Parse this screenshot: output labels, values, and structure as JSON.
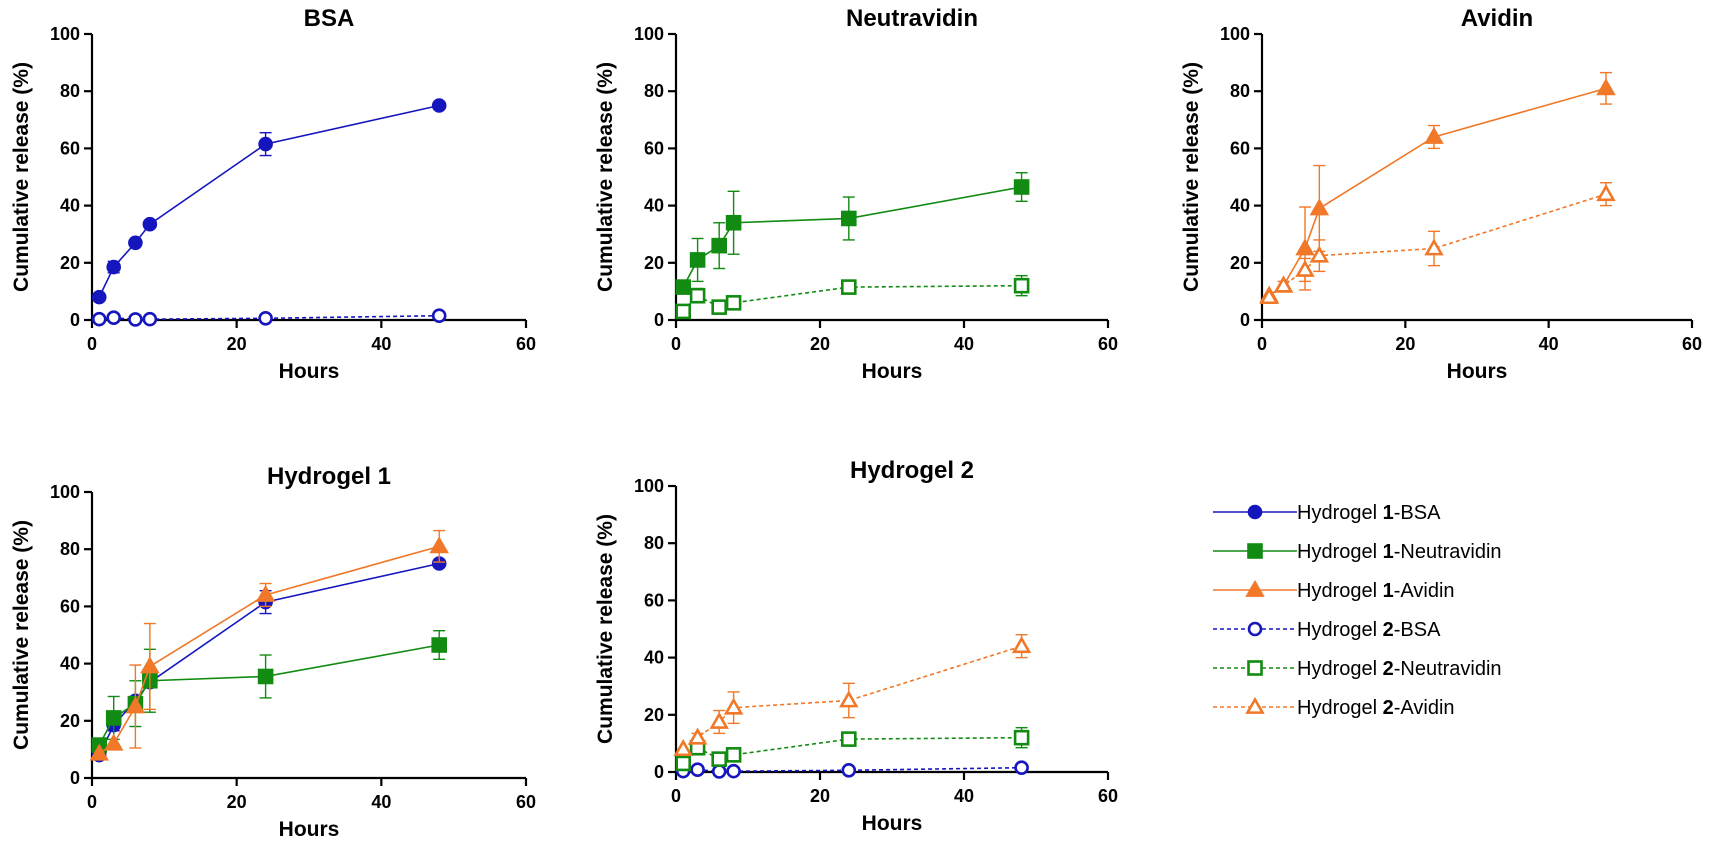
{
  "colors": {
    "BSA": "#1616be",
    "Neutravidin": "#128b12",
    "Avidin": "#f07828",
    "axis": "#000000"
  },
  "chart_data": [
    {
      "type": "line",
      "title": "BSA",
      "xlabel": "Hours",
      "ylabel": "Cumulative release (%)",
      "xlim": [
        0,
        60
      ],
      "ylim": [
        0,
        100
      ],
      "xticks": [
        0,
        20,
        40,
        60
      ],
      "yticks": [
        0,
        20,
        40,
        60,
        80,
        100
      ],
      "xtick_labels": [
        "0",
        "20",
        "40",
        "60"
      ],
      "ytick_labels": [
        "0",
        "20",
        "40",
        "60",
        "80",
        "100"
      ],
      "series": [
        {
          "name": "Hydrogel 1-BSA",
          "protein": "BSA",
          "marker": "circle",
          "filled": true,
          "dashed": false,
          "x": [
            1,
            3,
            6,
            8,
            24,
            48
          ],
          "y": [
            8,
            18.5,
            27,
            33.5,
            61.5,
            75
          ],
          "err": [
            0,
            2,
            0,
            0,
            4,
            0
          ]
        },
        {
          "name": "Hydrogel 2-BSA",
          "protein": "BSA",
          "marker": "circle",
          "filled": false,
          "dashed": true,
          "x": [
            1,
            3,
            6,
            8,
            24,
            48
          ],
          "y": [
            0.3,
            0.8,
            0.2,
            0.3,
            0.6,
            1.5
          ],
          "err": [
            0,
            0,
            0,
            0,
            0,
            0
          ]
        }
      ]
    },
    {
      "type": "line",
      "title": "Neutravidin",
      "xlabel": "Hours",
      "ylabel": "Cumulative release (%)",
      "xlim": [
        0,
        60
      ],
      "ylim": [
        0,
        100
      ],
      "xticks": [
        0,
        20,
        40,
        60
      ],
      "yticks": [
        0,
        20,
        40,
        60,
        80,
        100
      ],
      "xtick_labels": [
        "0",
        "20",
        "40",
        "60"
      ],
      "ytick_labels": [
        "0",
        "20",
        "40",
        "60",
        "80",
        "100"
      ],
      "series": [
        {
          "name": "Hydrogel 1-Neutravidin",
          "protein": "Neutravidin",
          "marker": "square",
          "filled": true,
          "dashed": false,
          "x": [
            1,
            3,
            6,
            8,
            24,
            48
          ],
          "y": [
            11.5,
            21,
            26,
            34,
            35.5,
            46.5
          ],
          "err": [
            0,
            7.5,
            8,
            11,
            7.5,
            5
          ]
        },
        {
          "name": "Hydrogel 2-Neutravidin",
          "protein": "Neutravidin",
          "marker": "square",
          "filled": false,
          "dashed": true,
          "x": [
            1,
            3,
            6,
            8,
            24,
            48
          ],
          "y": [
            3,
            8.5,
            4.5,
            6,
            11.5,
            12
          ],
          "err": [
            0,
            2.5,
            1,
            1,
            1.5,
            3.5
          ]
        }
      ]
    },
    {
      "type": "line",
      "title": "Avidin",
      "xlabel": "Hours",
      "ylabel": "Cumulative release (%)",
      "xlim": [
        0,
        60
      ],
      "ylim": [
        0,
        100
      ],
      "xticks": [
        0,
        20,
        40,
        60
      ],
      "yticks": [
        0,
        20,
        40,
        60,
        80,
        100
      ],
      "xtick_labels": [
        "0",
        "20",
        "40",
        "60"
      ],
      "ytick_labels": [
        "0",
        "20",
        "40",
        "60",
        "80",
        "100"
      ],
      "series": [
        {
          "name": "Hydrogel 1-Avidin",
          "protein": "Avidin",
          "marker": "triangle",
          "filled": true,
          "dashed": false,
          "x": [
            1,
            3,
            6,
            8,
            24,
            48
          ],
          "y": [
            8.5,
            12,
            25,
            39,
            64,
            81
          ],
          "err": [
            0,
            0,
            14.5,
            15,
            4,
            5.5
          ]
        },
        {
          "name": "Hydrogel 2-Avidin",
          "protein": "Avidin",
          "marker": "triangle",
          "filled": false,
          "dashed": true,
          "x": [
            1,
            3,
            6,
            8,
            24,
            48
          ],
          "y": [
            8,
            12,
            17.5,
            22.5,
            25,
            44
          ],
          "err": [
            0,
            1.5,
            4,
            5.5,
            6,
            4
          ]
        }
      ]
    },
    {
      "type": "line",
      "title": "Hydrogel 1",
      "xlabel": "Hours",
      "ylabel": "Cumulative release (%)",
      "xlim": [
        0,
        60
      ],
      "ylim": [
        0,
        100
      ],
      "xticks": [
        0,
        20,
        40,
        60
      ],
      "yticks": [
        0,
        20,
        40,
        60,
        80,
        100
      ],
      "xtick_labels": [
        "0",
        "20",
        "40",
        "60"
      ],
      "ytick_labels": [
        "0",
        "20",
        "40",
        "60",
        "80",
        "100"
      ],
      "series": [
        {
          "name": "Hydrogel 1-BSA",
          "protein": "BSA",
          "marker": "circle",
          "filled": true,
          "dashed": false,
          "x": [
            1,
            3,
            6,
            8,
            24,
            48
          ],
          "y": [
            8,
            18.5,
            27,
            33.5,
            61.5,
            75
          ],
          "err": [
            0,
            2,
            0,
            0,
            4,
            0
          ]
        },
        {
          "name": "Hydrogel 1-Neutravidin",
          "protein": "Neutravidin",
          "marker": "square",
          "filled": true,
          "dashed": false,
          "x": [
            1,
            3,
            6,
            8,
            24,
            48
          ],
          "y": [
            11.5,
            21,
            26,
            34,
            35.5,
            46.5
          ],
          "err": [
            0,
            7.5,
            8,
            11,
            7.5,
            5
          ]
        },
        {
          "name": "Hydrogel 1-Avidin",
          "protein": "Avidin",
          "marker": "triangle",
          "filled": true,
          "dashed": false,
          "x": [
            1,
            3,
            6,
            8,
            24,
            48
          ],
          "y": [
            8.5,
            12,
            25,
            39,
            64,
            81
          ],
          "err": [
            0,
            0,
            14.5,
            15,
            4,
            5.5
          ]
        }
      ]
    },
    {
      "type": "line",
      "title": "Hydrogel 2",
      "xlabel": "Hours",
      "ylabel": "Cumulative release (%)",
      "xlim": [
        0,
        60
      ],
      "ylim": [
        0,
        100
      ],
      "xticks": [
        0,
        20,
        40,
        60
      ],
      "yticks": [
        0,
        20,
        40,
        60,
        80,
        100
      ],
      "xtick_labels": [
        "0",
        "20",
        "40",
        "60"
      ],
      "ytick_labels": [
        "0",
        "20",
        "40",
        "60",
        "80",
        "100"
      ],
      "series": [
        {
          "name": "Hydrogel 2-BSA",
          "protein": "BSA",
          "marker": "circle",
          "filled": false,
          "dashed": true,
          "x": [
            1,
            3,
            6,
            8,
            24,
            48
          ],
          "y": [
            0.3,
            0.8,
            0.2,
            0.3,
            0.6,
            1.5
          ],
          "err": [
            0,
            0,
            0,
            0,
            0,
            0
          ]
        },
        {
          "name": "Hydrogel 2-Neutravidin",
          "protein": "Neutravidin",
          "marker": "square",
          "filled": false,
          "dashed": true,
          "x": [
            1,
            3,
            6,
            8,
            24,
            48
          ],
          "y": [
            3,
            8.5,
            4.5,
            6,
            11.5,
            12
          ],
          "err": [
            0,
            2.5,
            1,
            1,
            1.5,
            3.5
          ]
        },
        {
          "name": "Hydrogel 2-Avidin",
          "protein": "Avidin",
          "marker": "triangle",
          "filled": false,
          "dashed": true,
          "x": [
            1,
            3,
            6,
            8,
            24,
            48
          ],
          "y": [
            8,
            12,
            17.5,
            22.5,
            25,
            44
          ],
          "err": [
            0,
            1.5,
            4,
            5.5,
            6,
            4
          ]
        }
      ]
    }
  ],
  "legend": {
    "placement": "bottom-right",
    "items": [
      {
        "prefix": "Hydrogel ",
        "bold": "1",
        "suffix": "-BSA",
        "protein": "BSA",
        "marker": "circle",
        "filled": true,
        "dashed": false
      },
      {
        "prefix": "Hydrogel ",
        "bold": "1",
        "suffix": "-Neutravidin",
        "protein": "Neutravidin",
        "marker": "square",
        "filled": true,
        "dashed": false
      },
      {
        "prefix": "Hydrogel ",
        "bold": "1",
        "suffix": "-Avidin",
        "protein": "Avidin",
        "marker": "triangle",
        "filled": true,
        "dashed": false
      },
      {
        "prefix": "Hydrogel ",
        "bold": "2",
        "suffix": "-BSA",
        "protein": "BSA",
        "marker": "circle",
        "filled": false,
        "dashed": true
      },
      {
        "prefix": "Hydrogel ",
        "bold": "2",
        "suffix": "-Neutravidin",
        "protein": "Neutravidin",
        "marker": "square",
        "filled": false,
        "dashed": true
      },
      {
        "prefix": "Hydrogel ",
        "bold": "2",
        "suffix": "-Avidin",
        "protein": "Avidin",
        "marker": "triangle",
        "filled": false,
        "dashed": true
      }
    ]
  }
}
